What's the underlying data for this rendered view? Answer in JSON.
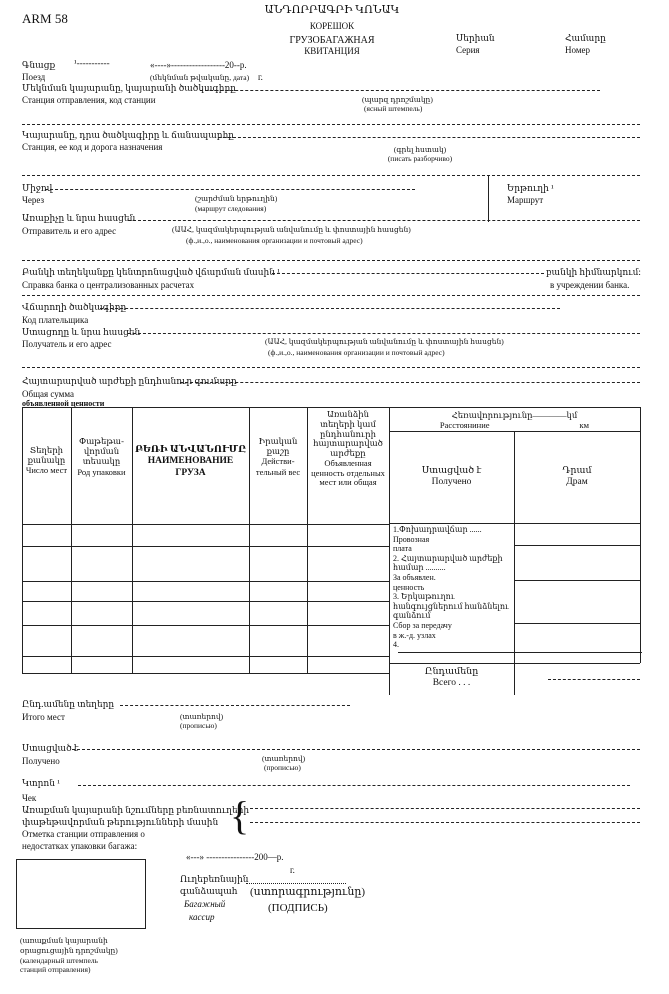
{
  "header": {
    "form_code": "ARM 58",
    "title_hy": "ԱՆԴՈՐՐԱԳՐԻ ԿՈՆԱԿ",
    "title_ru_1": "КОРЕШОК",
    "title_ru_2": "ГРУЗОБАГАЖНАЯ",
    "title_ru_3": "КВИТАНЦИЯ",
    "series_hy": "Սերիան",
    "series_ru": "Серия",
    "number_hy": "Համարը",
    "number_ru": "Номер"
  },
  "train": {
    "label_hy": "Գնացք",
    "sup": "¹-----------",
    "date_line": "«----»------------------20--р.",
    "label_ru": "Поезд",
    "date_hint": "(մեկնման թվականը, дата)",
    "year_suffix": "г."
  },
  "departure": {
    "label_hy": "Մեկնման կայարանը, կայարանի ծածկագիրը",
    "label_ru": "Станция отправления, код станции",
    "hint_hy": "(պարզ դրոշմակը)",
    "hint_ru": "(ясный штемпель)"
  },
  "destination": {
    "label_hy": "Կայարանը, դրա ծածկագիրը և ճանապարհը",
    "label_ru": "Станция, ее код и дорога назначения",
    "hint_hy": "(գրել հստակ)",
    "hint_ru": "(писать разборчиво)"
  },
  "via": {
    "label_hy": "Միջով",
    "label_ru": "Через",
    "hint_hy": "(շարժման երթուղին)",
    "hint_ru": "(маршрут следования)",
    "route_hy": "Երթուղի ¹",
    "route_ru": "Маршрут"
  },
  "sender": {
    "label_hy": "Առաքիչը և նրա հասցեն",
    "label_ru": "Отправитель и его адрес",
    "hint_hy": "(ԱԱՀ, կազմակերպության անվանումը և փոստային հասցեն)",
    "hint_ru": "(ф.,и.,о., наименования организации и почтовый адрес)"
  },
  "bank": {
    "label_hy": "Բանկի տեղեկանքը կենտրոնացված վճարման մասին ¹",
    "label_ru": "Справка банка о централизованных расчетах",
    "right_hy": "բանկի հիմնարկում:",
    "right_ru": "в учреждении банка."
  },
  "payer": {
    "label_hy": "Վճարողի ծածկագիրը",
    "label_ru": "Код плательщика"
  },
  "recipient": {
    "label_hy": "Ստացողը և նրա հասցեն",
    "label_ru": "Получатель и его адрес",
    "hint_hy": "(ԱԱՀ, կազմակերպության անվանումը և փոստային հասցեն)",
    "hint_ru": "(ф.,и.,о., наименования организации    и почтовый адрес)"
  },
  "declared": {
    "label_hy": "Հայտարարված արժեքի ընդհանուր գումարը",
    "label_ru_1": "Общая сумма",
    "label_ru_2": "объявленной ценности"
  },
  "table": {
    "col_places_hy": "Տեղերի քանակը",
    "col_places_ru": "Число мест",
    "col_pack_hy": "Փաթեթա-վորման տեսակը",
    "col_pack_ru": "Род упаковки",
    "col_name_hy": "ԲԵՌԻ ԱՆՎԱՆՈՒՄԸ",
    "col_name_ru": "НАИМЕНОВАНИЕ ГРУЗА",
    "col_weight_hy": "Իրական քաշը",
    "col_weight_ru": "Действи-тельный вес",
    "col_value_hy": "Առանձին տեղերի կամ ընդհանուրի հայտարարված արժեքը",
    "col_value_ru": "Объявленная ценность отдельных мест или общая",
    "distance_hy": "Հեռավորությունը————կմ",
    "distance_ru": "Расстояниние",
    "distance_unit_ru": "км",
    "received_hy": "Ստացված է",
    "received_ru": "Получено",
    "dram_hy": "Դրամ",
    "dram_ru": "Драм",
    "charge_1_hy": "1.Փոխադրավճար ......",
    "charge_1_ru_1": "Провозная",
    "charge_1_ru_2": "плата",
    "charge_2_hy_1": "2. Հայտարարված արժեքի",
    "charge_2_hy_2": "համար ..........",
    "charge_2_ru_1": "За объявлен.",
    "charge_2_ru_2": "ценность",
    "charge_3_hy_1": "3. Երկաթուղու",
    "charge_3_hy_2": "հանգույցներում հանձնելու",
    "charge_3_hy_3": "գանձում",
    "charge_3_ru_1": "Сбор за передачу",
    "charge_3_ru_2": "в ж.-д. узлах",
    "charge_4": "4.",
    "total_hy": "Ընդամենը",
    "total_ru": "Всего . . ."
  },
  "total_places": {
    "label_hy": "Ընդ.ամենը տեղերը",
    "label_ru": "Итого мест",
    "hint_hy": "(տառերով)",
    "hint_ru": "(прописью)"
  },
  "received": {
    "label_hy": "Ստացված է",
    "label_ru": "Получено",
    "hint_hy": "(տառերով)",
    "hint_ru": "(прописью)"
  },
  "check": {
    "label_hy": "Կտրոն ¹",
    "label_ru": "Чек",
    "note_hy_1": "Առաքման կայարանի նշումները բեռնատուղերի",
    "note_hy_2": "փաթեթավորման թերությունների մասին",
    "note_ru_1": "Отметка станции отправления о",
    "note_ru_2": "недостатках упаковки багажа:"
  },
  "signature": {
    "date_line": "«---» ----------------200—р.",
    "year_suffix": "г.",
    "cashier_hy_1": "Ուղեբեռնային",
    "cashier_hy_2": "գանձապահ",
    "cashier_ru_1": "Багажный",
    "cashier_ru_2": "кассир",
    "sign_hy": "(ստորագրությունը)",
    "sign_ru": "(ПОДПИСЬ)"
  },
  "stamp": {
    "caption_hy_1": "(առաքման կայարանի",
    "caption_hy_2": "օրացուցային դրոշմակը)",
    "caption_ru_1": "(календарный штемпель",
    "caption_ru_2": "станций отправления)"
  }
}
